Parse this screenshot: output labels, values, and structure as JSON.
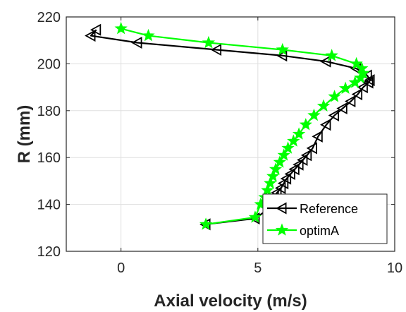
{
  "chart_data": {
    "type": "line",
    "title": "",
    "xlabel": "Axial velocity (m/s)",
    "ylabel": "R (mm)",
    "xlim": [
      -2,
      10
    ],
    "ylim": [
      120,
      220
    ],
    "xticks": [
      0,
      5,
      10
    ],
    "yticks": [
      120,
      140,
      160,
      180,
      200,
      220
    ],
    "xtick_labels": [
      "0",
      "5",
      "10"
    ],
    "ytick_labels": [
      "120",
      "140",
      "160",
      "180",
      "200",
      "220"
    ],
    "grid": true,
    "legend_position": "bottom-right",
    "series": [
      {
        "name": "Reference",
        "color": "#000000",
        "marker": "triangle-left",
        "x": [
          3.1,
          4.9,
          5.5,
          5.6,
          5.7,
          5.85,
          5.95,
          6.05,
          6.2,
          6.35,
          6.5,
          6.65,
          6.8,
          7.0,
          7.2,
          7.5,
          7.8,
          8.1,
          8.4,
          8.65,
          8.85,
          9.05,
          9.1,
          9.0,
          8.6,
          7.5,
          5.9,
          3.5,
          0.6,
          -1.1,
          -0.9
        ],
        "y": [
          131.5,
          134,
          139,
          143,
          145,
          147,
          149,
          151,
          153,
          155,
          157,
          159,
          161,
          164,
          169,
          174,
          178,
          181,
          184,
          187,
          190,
          192,
          193,
          195,
          198,
          201,
          203.5,
          206,
          209,
          212,
          214.5
        ]
      },
      {
        "name": "optimA",
        "color": "#00ff00",
        "marker": "star",
        "x": [
          3.1,
          4.9,
          5.1,
          5.25,
          5.35,
          5.45,
          5.55,
          5.65,
          5.8,
          5.95,
          6.1,
          6.3,
          6.5,
          6.75,
          7.05,
          7.4,
          7.8,
          8.2,
          8.55,
          8.75,
          8.85,
          8.8,
          8.6,
          7.7,
          5.9,
          3.2,
          1.0,
          0.0
        ],
        "y": [
          131.5,
          134.5,
          140,
          143,
          146,
          149,
          152,
          155,
          158,
          161,
          164,
          167,
          170,
          174,
          178,
          182,
          186,
          189.5,
          192,
          194,
          196,
          198,
          200,
          203.5,
          206,
          209,
          212,
          215
        ]
      }
    ]
  }
}
